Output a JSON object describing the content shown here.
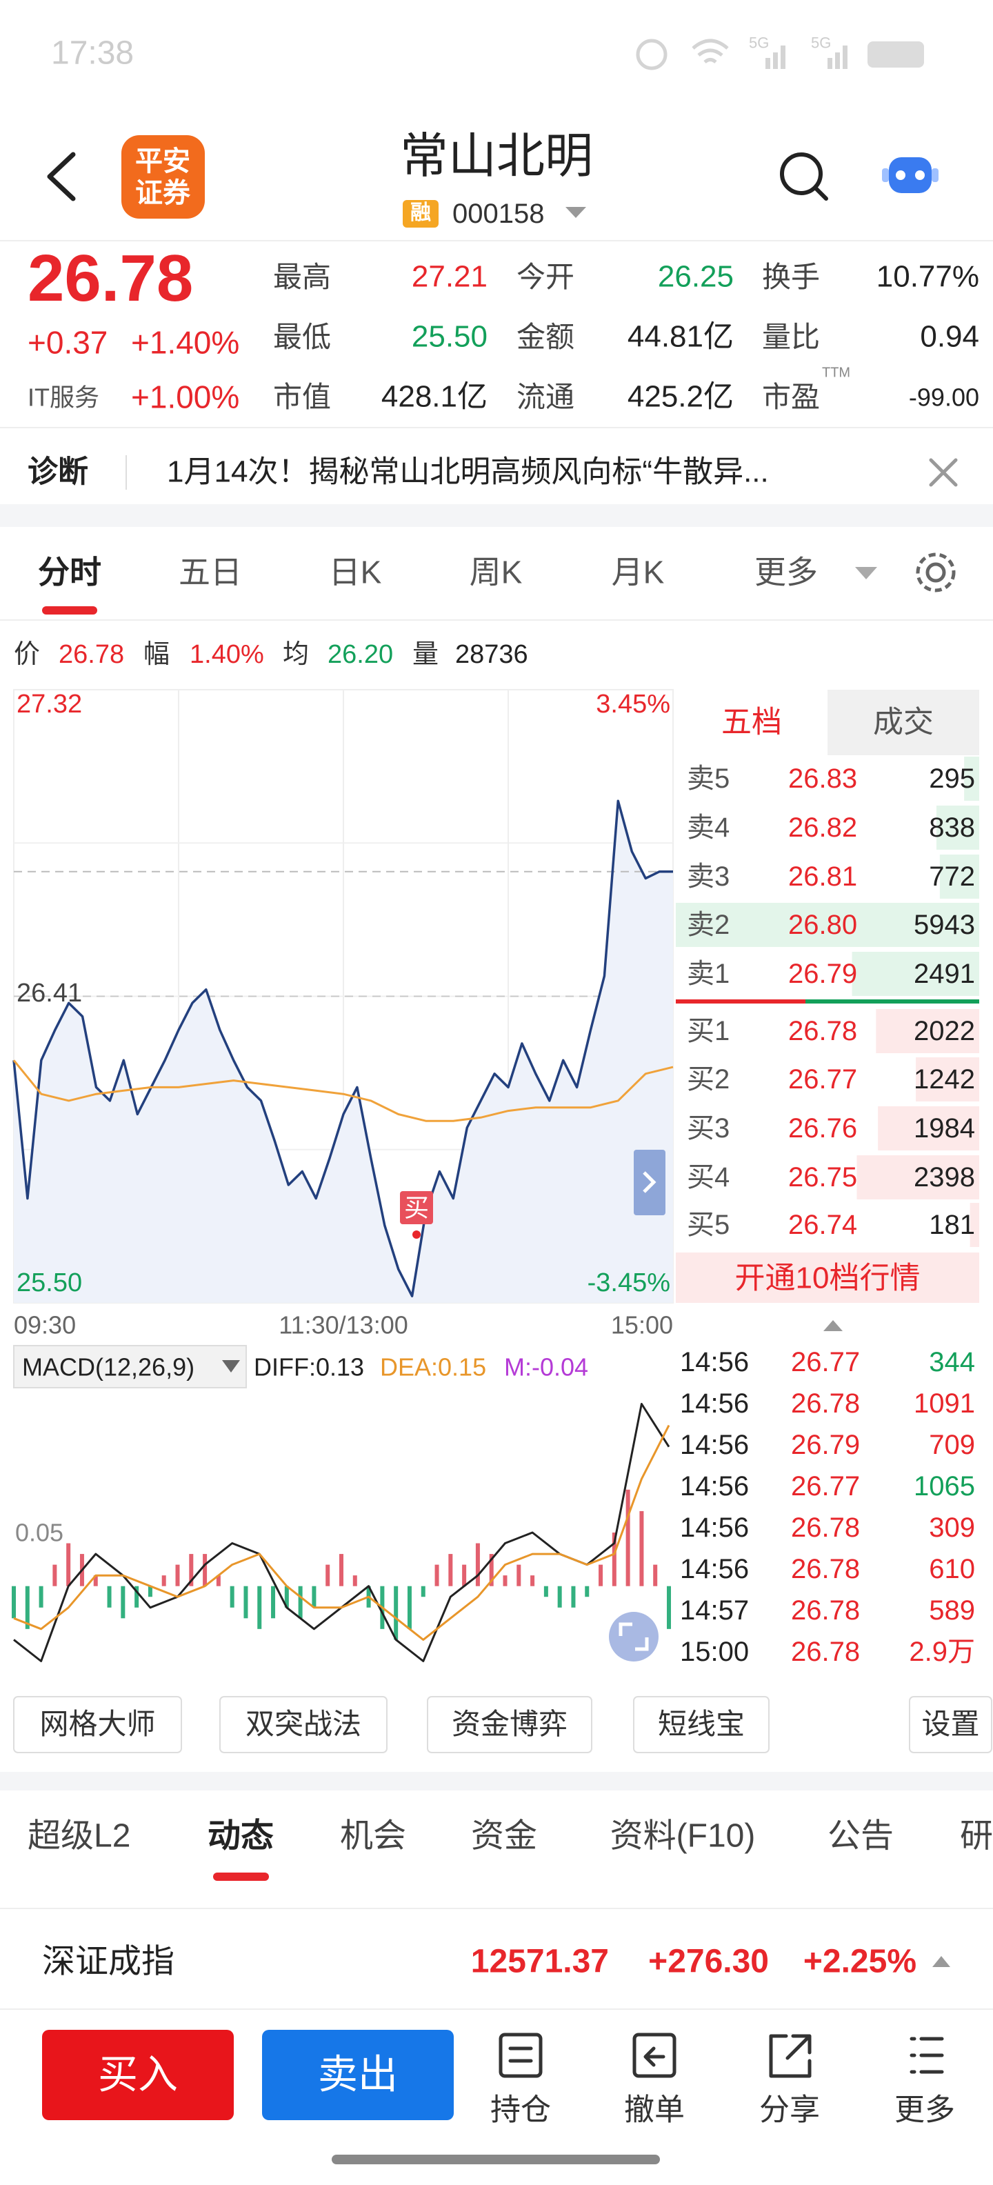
{
  "status_bar": {
    "time": "17:38",
    "network": [
      "5G",
      "5G"
    ]
  },
  "header": {
    "logo": [
      "平安",
      "证券"
    ],
    "title": "常山北明",
    "badge": "融",
    "code": "000158"
  },
  "quote": {
    "price": "26.78",
    "change": "+0.37",
    "change_pct": "+1.40%",
    "sector": "IT服务",
    "sector_pct": "+1.00%",
    "stats": [
      {
        "label": "最高",
        "value": "27.21",
        "color": "#e8262b"
      },
      {
        "label": "今开",
        "value": "26.25",
        "color": "#13a05a"
      },
      {
        "label": "换手",
        "value": "10.77%",
        "color": "#222222"
      },
      {
        "label": "最低",
        "value": "25.50",
        "color": "#13a05a"
      },
      {
        "label": "金额",
        "value": "44.81亿",
        "color": "#222222"
      },
      {
        "label": "量比",
        "value": "0.94",
        "color": "#222222"
      },
      {
        "label": "市值",
        "value": "428.1亿",
        "color": "#222222"
      },
      {
        "label": "流通",
        "value": "425.2亿",
        "color": "#222222"
      },
      {
        "label": "市盈",
        "value": "-99.00",
        "color": "#222222",
        "sup": "TTM"
      }
    ]
  },
  "diagnosis": {
    "label": "诊断",
    "text": "1月14次！揭秘常山北明高频风向标“牛散异..."
  },
  "chart_tabs": [
    "分时",
    "五日",
    "日K",
    "周K",
    "月K",
    "更多"
  ],
  "summary": [
    {
      "label": "价",
      "value": "26.78",
      "color": "#e8262b"
    },
    {
      "label": "幅",
      "value": "1.40%",
      "color": "#e8262b"
    },
    {
      "label": "均",
      "value": "26.20",
      "color": "#13a05a"
    },
    {
      "label": "量",
      "value": "28736",
      "color": "#222222"
    }
  ],
  "chart_data": [
    {
      "type": "line",
      "xlim": [
        0,
        240
      ],
      "xticks": [
        {
          "value": 0,
          "label": "09:30"
        },
        {
          "value": 120,
          "label": "11:30/13:00"
        },
        {
          "value": 240,
          "label": "15:00"
        }
      ],
      "ylim": [
        25.5,
        27.32
      ],
      "yticks": [
        27.32,
        26.41,
        {
          "value": 25.5,
          "label": "25.50"
        }
      ],
      "y2lim": [
        -3.45,
        3.45
      ],
      "y2ticks": [
        {
          "value": 3.45,
          "label": "3.45%"
        },
        {
          "value": -3.45,
          "label": "-3.45%"
        }
      ],
      "series": [
        {
          "color": "#23407e",
          "x": [
            0,
            5,
            10,
            15,
            20,
            25,
            30,
            35,
            40,
            45,
            50,
            55,
            60,
            65,
            70,
            75,
            80,
            85,
            90,
            95,
            100,
            105,
            110,
            115,
            120,
            125,
            130,
            135,
            140,
            145,
            150,
            155,
            160,
            165,
            170,
            175,
            180,
            185,
            190,
            195,
            200,
            205,
            210,
            215,
            220,
            225,
            230,
            235,
            240
          ],
          "values": [
            26.22,
            25.81,
            26.22,
            26.31,
            26.39,
            26.35,
            26.14,
            26.1,
            26.22,
            26.06,
            26.14,
            26.22,
            26.31,
            26.39,
            26.43,
            26.31,
            26.22,
            26.14,
            26.1,
            25.98,
            25.85,
            25.89,
            25.81,
            25.93,
            26.06,
            26.14,
            25.93,
            25.73,
            25.6,
            25.52,
            25.77,
            25.89,
            25.81,
            26.02,
            26.1,
            26.18,
            26.14,
            26.27,
            26.18,
            26.1,
            26.22,
            26.14,
            26.31,
            26.47,
            26.99,
            26.84,
            26.76,
            26.78,
            26.78
          ]
        },
        {
          "color": "#f0a23a",
          "x": [
            0,
            10,
            20,
            30,
            40,
            50,
            60,
            70,
            80,
            90,
            100,
            110,
            120,
            130,
            140,
            150,
            160,
            170,
            180,
            190,
            200,
            210,
            220,
            230,
            240
          ],
          "values": [
            26.22,
            26.12,
            26.1,
            26.12,
            26.13,
            26.14,
            26.14,
            26.15,
            26.16,
            26.15,
            26.14,
            26.13,
            26.12,
            26.1,
            26.06,
            26.04,
            26.04,
            26.05,
            26.07,
            26.08,
            26.08,
            26.08,
            26.1,
            26.18,
            26.2
          ]
        }
      ],
      "annotations": [
        "买"
      ]
    },
    {
      "type": "bar",
      "title": "MACD(12,26,9)",
      "xlim": [
        0,
        240
      ],
      "ylim": [
        -0.08,
        0.18
      ],
      "yticks": [
        0.05
      ],
      "series": [
        {
          "name": "M:-0.04",
          "label_color": "#b43ad6",
          "colors": {
            "up": "#e2606e",
            "down": "#33b07f"
          },
          "x": [
            0,
            5,
            10,
            15,
            20,
            25,
            30,
            35,
            40,
            45,
            50,
            55,
            60,
            65,
            70,
            75,
            80,
            85,
            90,
            95,
            100,
            105,
            110,
            115,
            120,
            125,
            130,
            135,
            140,
            145,
            150,
            155,
            160,
            165,
            170,
            175,
            180,
            185,
            190,
            195,
            200,
            205,
            210,
            215,
            220,
            225,
            230,
            235,
            240
          ],
          "values": [
            -0.03,
            -0.04,
            -0.02,
            0.02,
            0.04,
            0.03,
            0.01,
            -0.02,
            -0.03,
            -0.02,
            -0.01,
            0.01,
            0.02,
            0.03,
            0.03,
            0.01,
            -0.02,
            -0.03,
            -0.04,
            -0.03,
            -0.02,
            -0.03,
            -0.02,
            0.02,
            0.03,
            0.01,
            -0.02,
            -0.04,
            -0.05,
            -0.04,
            -0.01,
            0.02,
            0.03,
            0.02,
            0.04,
            0.03,
            0.01,
            0.02,
            0.01,
            -0.01,
            -0.02,
            -0.02,
            -0.01,
            0.02,
            0.05,
            0.09,
            0.07,
            0.02,
            -0.04
          ]
        },
        {
          "type": "line",
          "name": "DIFF:0.13",
          "color": "#222222",
          "x": [
            0,
            10,
            20,
            30,
            40,
            50,
            60,
            70,
            80,
            90,
            100,
            110,
            120,
            130,
            140,
            150,
            160,
            170,
            180,
            190,
            200,
            210,
            220,
            230,
            240
          ],
          "values": [
            -0.05,
            -0.07,
            0.0,
            0.03,
            0.01,
            -0.02,
            -0.01,
            0.02,
            0.04,
            0.03,
            -0.02,
            -0.04,
            -0.02,
            0.0,
            -0.05,
            -0.07,
            -0.01,
            0.01,
            0.04,
            0.05,
            0.03,
            0.02,
            0.04,
            0.17,
            0.13
          ]
        },
        {
          "type": "line",
          "name": "DEA:0.15",
          "color": "#e8962a",
          "x": [
            0,
            10,
            20,
            30,
            40,
            50,
            60,
            70,
            80,
            90,
            100,
            110,
            120,
            130,
            140,
            150,
            160,
            170,
            180,
            190,
            200,
            210,
            220,
            230,
            240
          ],
          "values": [
            -0.03,
            -0.04,
            -0.02,
            0.01,
            0.01,
            0.0,
            -0.01,
            0.0,
            0.02,
            0.03,
            0.0,
            -0.02,
            -0.02,
            -0.01,
            -0.03,
            -0.05,
            -0.03,
            -0.01,
            0.02,
            0.03,
            0.03,
            0.02,
            0.03,
            0.1,
            0.15
          ]
        }
      ]
    }
  ],
  "order_book": {
    "tabs": [
      "五档",
      "成交"
    ],
    "asks": [
      {
        "label": "卖5",
        "price": "26.83",
        "volume": "295"
      },
      {
        "label": "卖4",
        "price": "26.82",
        "volume": "838"
      },
      {
        "label": "卖3",
        "price": "26.81",
        "volume": "772"
      },
      {
        "label": "卖2",
        "price": "26.80",
        "volume": "5943"
      },
      {
        "label": "卖1",
        "price": "26.79",
        "volume": "2491"
      }
    ],
    "bids": [
      {
        "label": "买1",
        "price": "26.78",
        "volume": "2022"
      },
      {
        "label": "买2",
        "price": "26.77",
        "volume": "1242"
      },
      {
        "label": "买3",
        "price": "26.76",
        "volume": "1984"
      },
      {
        "label": "买4",
        "price": "26.75",
        "volume": "2398"
      },
      {
        "label": "买5",
        "price": "26.74",
        "volume": "181"
      }
    ],
    "upgrade": "开通10档行情"
  },
  "trades": [
    {
      "time": "14:56",
      "price": "26.77",
      "volume": "344",
      "color": "#13a05a"
    },
    {
      "time": "14:56",
      "price": "26.78",
      "volume": "1091",
      "color": "#e8262b"
    },
    {
      "time": "14:56",
      "price": "26.79",
      "volume": "709",
      "color": "#e8262b"
    },
    {
      "time": "14:56",
      "price": "26.77",
      "volume": "1065",
      "color": "#13a05a"
    },
    {
      "time": "14:56",
      "price": "26.78",
      "volume": "309",
      "color": "#e8262b"
    },
    {
      "time": "14:56",
      "price": "26.78",
      "volume": "610",
      "color": "#e8262b"
    },
    {
      "time": "14:57",
      "price": "26.78",
      "volume": "589",
      "color": "#e8262b"
    },
    {
      "time": "15:00",
      "price": "26.78",
      "volume": "2.9万",
      "color": "#e8262b"
    }
  ],
  "tools": [
    "网格大师",
    "双突战法",
    "资金博弈",
    "短线宝",
    "设置"
  ],
  "sub_tabs": [
    "超级L2",
    "动态",
    "机会",
    "资金",
    "资料(F10)",
    "公告",
    "研"
  ],
  "index": {
    "name": "深证成指",
    "value": "12571.37",
    "change": "+276.30",
    "change_pct": "+2.25%"
  },
  "actions": {
    "buy": "买入",
    "sell": "卖出",
    "icons": [
      "持仓",
      "撤单",
      "分享",
      "更多"
    ]
  }
}
